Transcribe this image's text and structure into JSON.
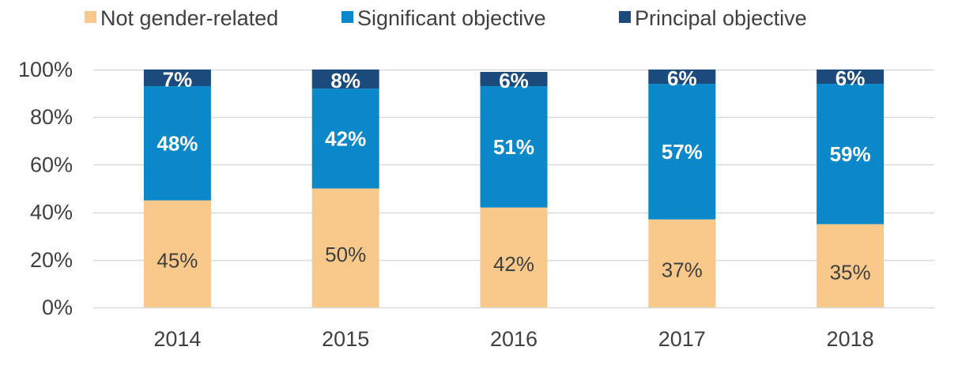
{
  "chart_data": {
    "type": "bar",
    "stacked": true,
    "percent": true,
    "categories": [
      "2014",
      "2015",
      "2016",
      "2017",
      "2018"
    ],
    "series": [
      {
        "name": "Not gender-related",
        "color": "#f8c98b",
        "label_color": "#404040",
        "label_bold": false,
        "values": [
          45,
          50,
          42,
          37,
          35
        ],
        "labels": [
          "45%",
          "50%",
          "42%",
          "37%",
          "35%"
        ]
      },
      {
        "name": "Significant objective",
        "color": "#0a88c9",
        "label_color": "#ffffff",
        "label_bold": true,
        "values": [
          48,
          42,
          51,
          57,
          59
        ],
        "labels": [
          "48%",
          "42%",
          "51%",
          "57%",
          "59%"
        ]
      },
      {
        "name": "Principal objective",
        "color": "#1b4a7c",
        "label_color": "#ffffff",
        "label_bold": true,
        "values": [
          7,
          8,
          6,
          6,
          6
        ],
        "labels": [
          "7%",
          "8%",
          "6%",
          "6%",
          "6%"
        ]
      }
    ],
    "ylim": [
      0,
      100
    ],
    "yticks": [
      0,
      20,
      40,
      60,
      80,
      100
    ],
    "ytick_labels": [
      "0%",
      "20%",
      "40%",
      "60%",
      "80%",
      "100%"
    ],
    "grid": true,
    "legend_position": "top",
    "gridline_color": "#d9d9d9"
  }
}
